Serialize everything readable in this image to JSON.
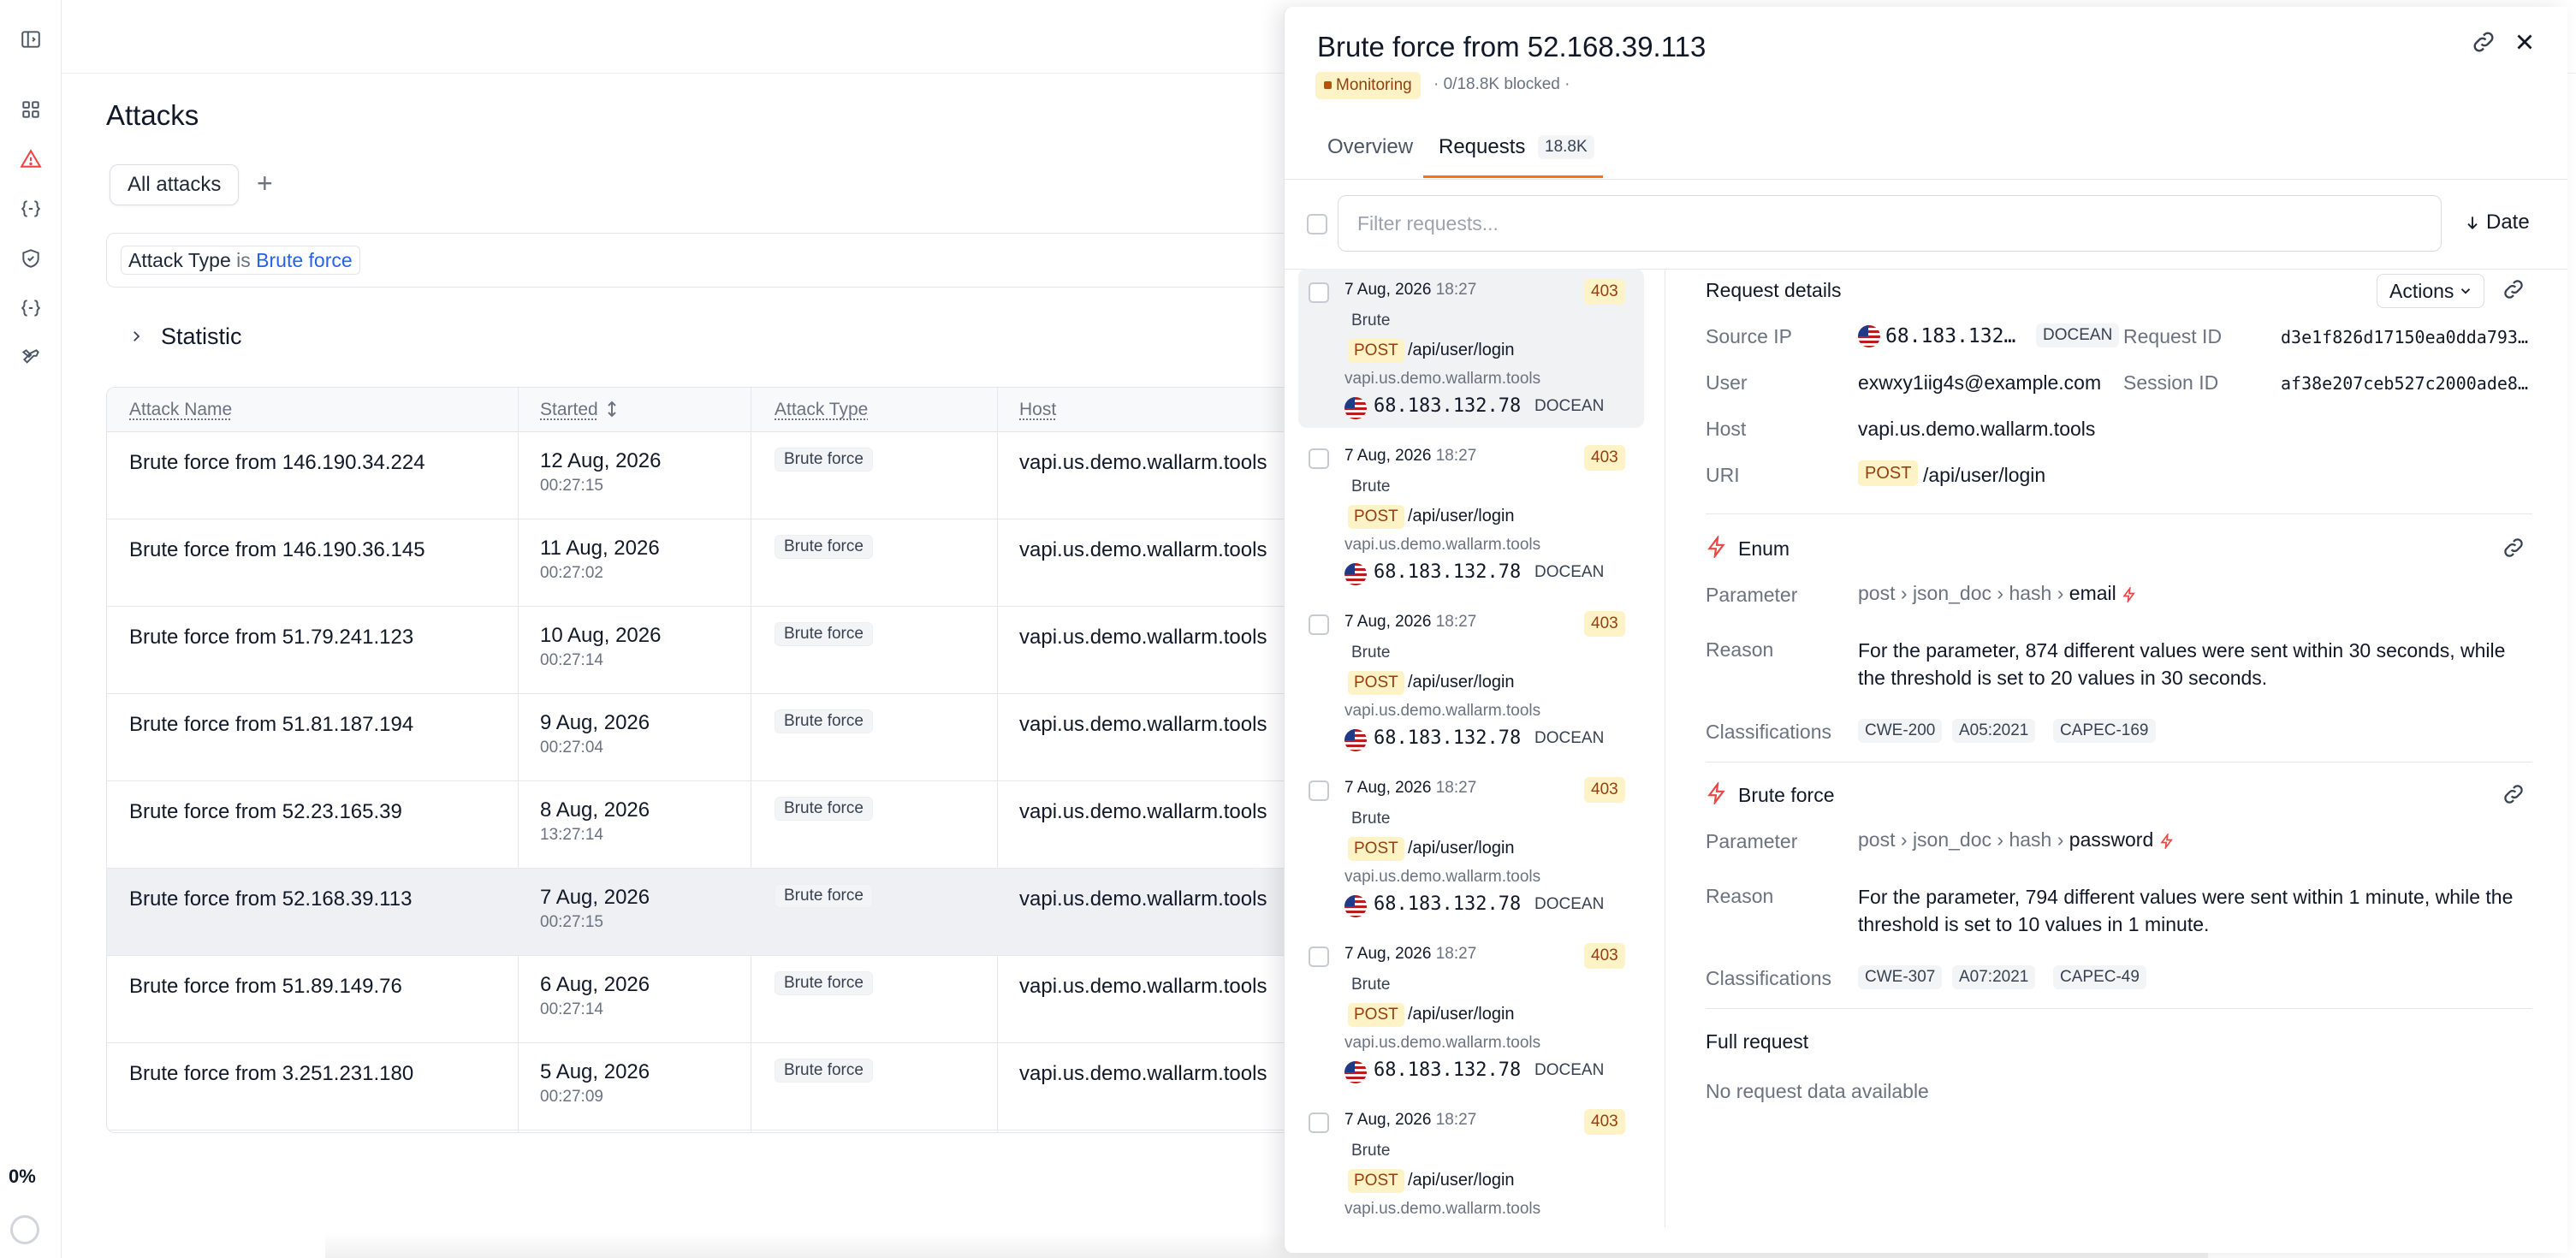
{
  "sidebar": {
    "items": [
      "sidebar-toggle",
      "dashboard",
      "attacks",
      "api",
      "security",
      "api-specs",
      "tools"
    ],
    "progress_label": "0%"
  },
  "page": {
    "title": "Attacks",
    "tab_label": "All attacks",
    "add_tab": "+",
    "filter": {
      "field": "Attack Type",
      "op": "is",
      "value": "Brute force"
    },
    "statistic_label": "Statistic"
  },
  "table": {
    "columns": [
      "Attack Name",
      "Started",
      "Attack Type",
      "Host"
    ],
    "rows": [
      {
        "name": "Brute force from 146.190.34.224",
        "date": "12 Aug, 2026",
        "time": "00:27:15",
        "type": "Brute force",
        "host": "vapi.us.demo.wallarm.tools"
      },
      {
        "name": "Brute force from 146.190.36.145",
        "date": "11 Aug, 2026",
        "time": "00:27:02",
        "type": "Brute force",
        "host": "vapi.us.demo.wallarm.tools"
      },
      {
        "name": "Brute force from 51.79.241.123",
        "date": "10 Aug, 2026",
        "time": "00:27:14",
        "type": "Brute force",
        "host": "vapi.us.demo.wallarm.tools"
      },
      {
        "name": "Brute force from 51.81.187.194",
        "date": "9 Aug, 2026",
        "time": "00:27:04",
        "type": "Brute force",
        "host": "vapi.us.demo.wallarm.tools"
      },
      {
        "name": "Brute force from 52.23.165.39",
        "date": "8 Aug, 2026",
        "time": "13:27:14",
        "type": "Brute force",
        "host": "vapi.us.demo.wallarm.tools"
      },
      {
        "name": "Brute force from 52.168.39.113",
        "date": "7 Aug, 2026",
        "time": "00:27:15",
        "type": "Brute force",
        "host": "vapi.us.demo.wallarm.tools"
      },
      {
        "name": "Brute force from 51.89.149.76",
        "date": "6 Aug, 2026",
        "time": "00:27:14",
        "type": "Brute force",
        "host": "vapi.us.demo.wallarm.tools"
      },
      {
        "name": "Brute force from 3.251.231.180",
        "date": "5 Aug, 2026",
        "time": "00:27:09",
        "type": "Brute force",
        "host": "vapi.us.demo.wallarm.tools"
      }
    ]
  },
  "drawer": {
    "title": "Brute force from 52.168.39.113",
    "status": "Monitoring",
    "subtitle": "· 0/18.8K blocked ·",
    "tabs": {
      "overview": "Overview",
      "requests": "Requests",
      "requests_count": "18.8K"
    },
    "filter_placeholder": "Filter requests...",
    "sort_label": "Date",
    "requests": [
      {
        "date": "7 Aug, 2026",
        "time": "18:27",
        "code": "403",
        "type": "Brute",
        "method": "POST",
        "path": "/api/user/login",
        "host": "vapi.us.demo.wallarm.tools",
        "ip": "68.183.132.78",
        "org": "DOCEAN"
      },
      {
        "date": "7 Aug, 2026",
        "time": "18:27",
        "code": "403",
        "type": "Brute",
        "method": "POST",
        "path": "/api/user/login",
        "host": "vapi.us.demo.wallarm.tools",
        "ip": "68.183.132.78",
        "org": "DOCEAN"
      },
      {
        "date": "7 Aug, 2026",
        "time": "18:27",
        "code": "403",
        "type": "Brute",
        "method": "POST",
        "path": "/api/user/login",
        "host": "vapi.us.demo.wallarm.tools",
        "ip": "68.183.132.78",
        "org": "DOCEAN"
      },
      {
        "date": "7 Aug, 2026",
        "time": "18:27",
        "code": "403",
        "type": "Brute",
        "method": "POST",
        "path": "/api/user/login",
        "host": "vapi.us.demo.wallarm.tools",
        "ip": "68.183.132.78",
        "org": "DOCEAN"
      },
      {
        "date": "7 Aug, 2026",
        "time": "18:27",
        "code": "403",
        "type": "Brute",
        "method": "POST",
        "path": "/api/user/login",
        "host": "vapi.us.demo.wallarm.tools",
        "ip": "68.183.132.78",
        "org": "DOCEAN"
      },
      {
        "date": "7 Aug, 2026",
        "time": "18:27",
        "code": "403",
        "type": "Brute",
        "method": "POST",
        "path": "/api/user/login",
        "host": "vapi.us.demo.wallarm.tools",
        "ip": "",
        "org": ""
      }
    ],
    "details": {
      "heading": "Request details",
      "actions_label": "Actions",
      "source_ip_label": "Source IP",
      "source_ip": "68.183.132…",
      "source_org": "DOCEAN",
      "request_id_label": "Request ID",
      "request_id": "d3e1f826d17150ea0dda793…",
      "user_label": "User",
      "user": "exwxy1iig4s@example.com",
      "session_id_label": "Session ID",
      "session_id": "af38e207ceb527c2000ade8…",
      "host_label": "Host",
      "host": "vapi.us.demo.wallarm.tools",
      "uri_label": "URI",
      "uri_method": "POST",
      "uri_path": "/api/user/login"
    },
    "threats": [
      {
        "name": "Enum",
        "parameter_label": "Parameter",
        "path": [
          "post",
          "json_doc",
          "hash"
        ],
        "param": "email",
        "reason_label": "Reason",
        "reason": "For the parameter, 874 different values were sent within 30 seconds, while the threshold is set to 20 values in 30 seconds.",
        "classifications_label": "Classifications",
        "classifications": [
          "CWE-200",
          "A05:2021",
          "CAPEC-169"
        ]
      },
      {
        "name": "Brute force",
        "parameter_label": "Parameter",
        "path": [
          "post",
          "json_doc",
          "hash"
        ],
        "param": "password",
        "reason_label": "Reason",
        "reason": "For the parameter, 794 different values were sent within 1 minute, while the threshold is set to 10 values in 1 minute.",
        "classifications_label": "Classifications",
        "classifications": [
          "CWE-307",
          "A07:2021",
          "CAPEC-49"
        ]
      }
    ],
    "full_request_label": "Full request",
    "full_request_empty": "No request data available"
  },
  "colors": {
    "accent": "#f97316",
    "link": "#2563eb",
    "danger": "#ef4444",
    "warn_bg": "#fef3c7",
    "warn_fg": "#92400e"
  }
}
